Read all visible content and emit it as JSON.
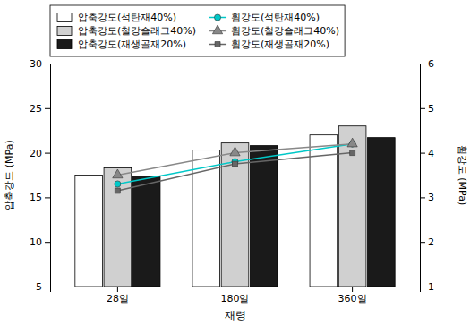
{
  "chart_data": {
    "type": "bar",
    "categories": [
      "28일",
      "180일",
      "360일"
    ],
    "xlabel": "재령",
    "ylabel": "압축강도 (MPa)",
    "y2label": "휨강도 (MPa)",
    "ylim": [
      5,
      30
    ],
    "yticks": [
      5,
      10,
      15,
      20,
      25,
      30
    ],
    "y2lim": [
      1,
      6
    ],
    "y2ticks": [
      1,
      2,
      3,
      4,
      5,
      6
    ],
    "grid": false,
    "legend": "top",
    "series": [
      {
        "name": "압축강도(석탄재40%)",
        "type": "bar",
        "color": "#ffffff",
        "values": [
          17.5,
          20.3,
          22.0
        ]
      },
      {
        "name": "압축강도(철강슬래그40%)",
        "type": "bar",
        "color": "#d0d0d0",
        "values": [
          18.3,
          21.1,
          23.0
        ]
      },
      {
        "name": "압축강도(재생골재20%)",
        "type": "bar",
        "color": "#1a1a1a",
        "values": [
          17.4,
          20.8,
          21.7
        ]
      },
      {
        "name": "휨강도(석탄재40%)",
        "type": "line",
        "axis": "y2",
        "marker": "circle",
        "color": "#00c8c8",
        "values": [
          3.3,
          3.8,
          4.2
        ]
      },
      {
        "name": "휨강도(철강슬래그40%)",
        "type": "line",
        "axis": "y2",
        "marker": "triangle",
        "color": "#888888",
        "values": [
          3.5,
          4.0,
          4.2
        ]
      },
      {
        "name": "휨강도(재생골재20%)",
        "type": "line",
        "axis": "y2",
        "marker": "square",
        "color": "#666666",
        "values": [
          3.15,
          3.75,
          4.0
        ]
      }
    ]
  }
}
